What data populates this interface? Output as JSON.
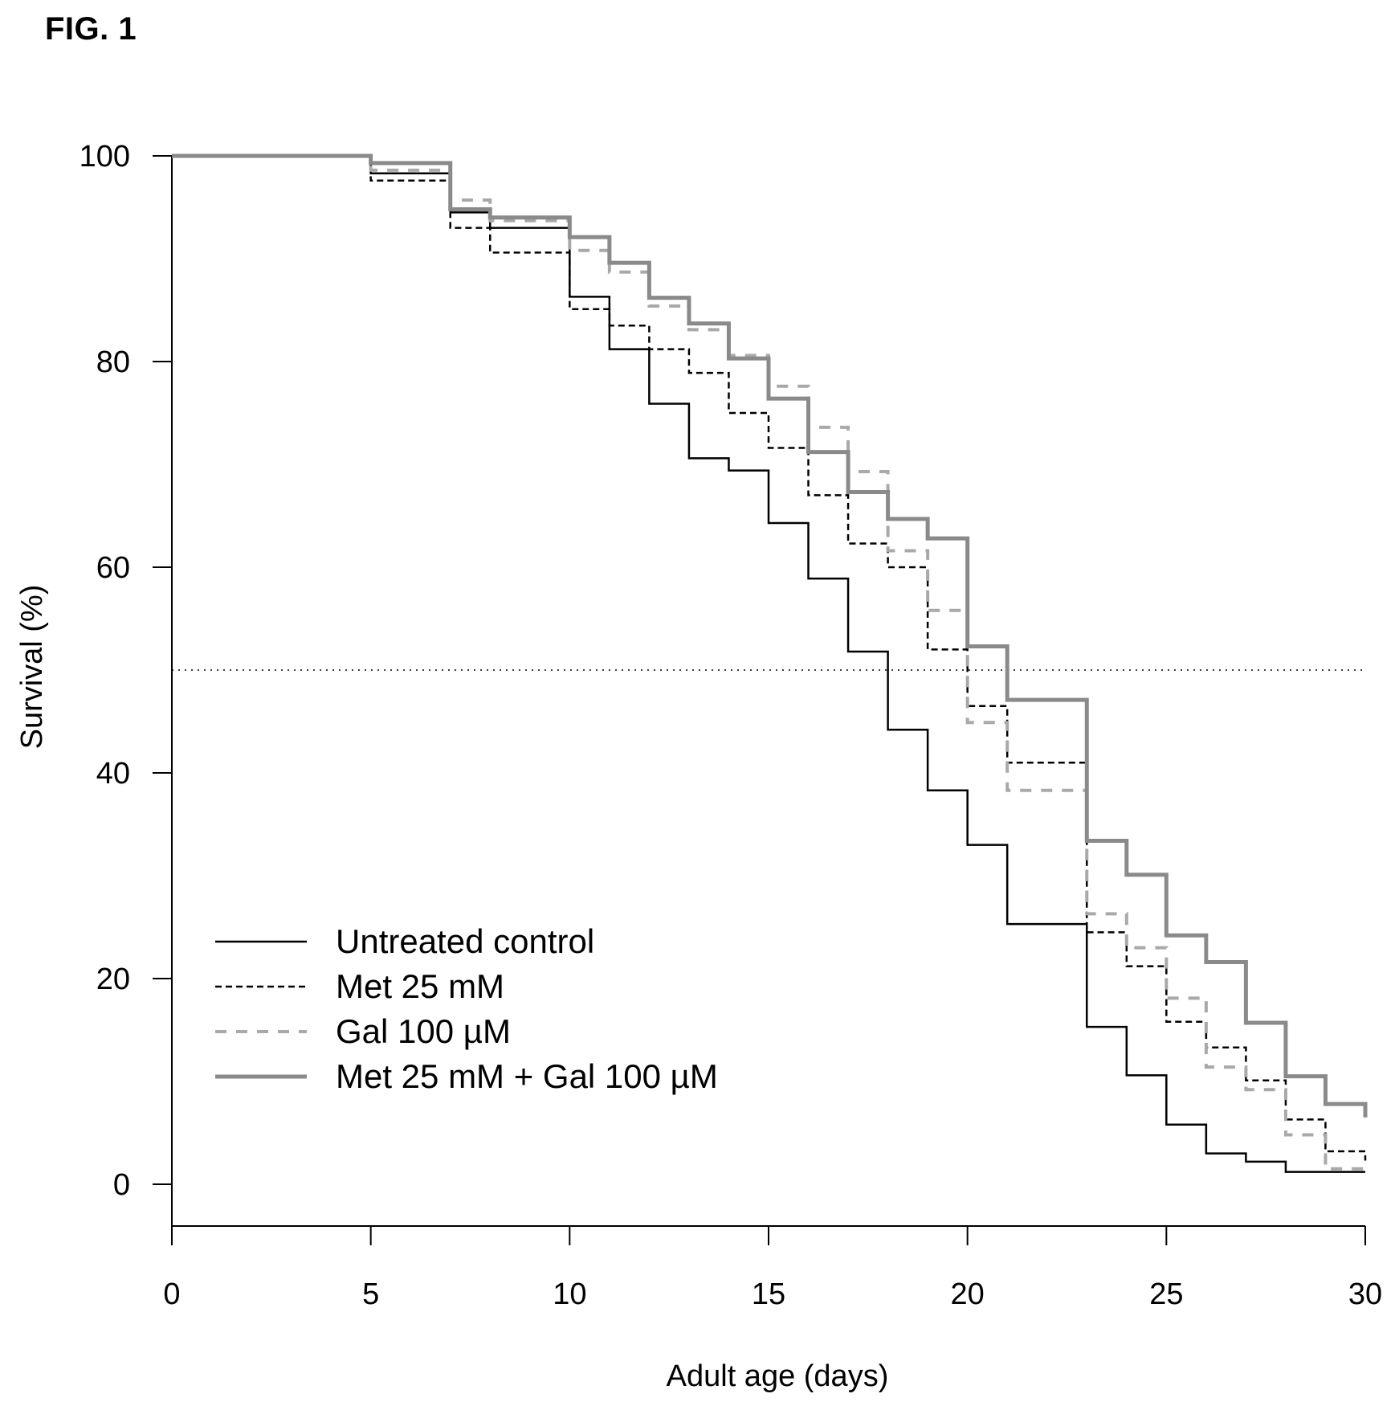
{
  "figure_label": "FIG. 1",
  "chart_data": {
    "type": "line",
    "step": true,
    "title": "",
    "xlabel": "Adult age (days)",
    "ylabel": "Survival (%)",
    "xlim": [
      0,
      30
    ],
    "ylim": [
      -4,
      100
    ],
    "xticks": [
      0,
      5,
      10,
      15,
      20,
      25,
      30
    ],
    "yticks": [
      0,
      20,
      40,
      60,
      80,
      100
    ],
    "grid": false,
    "legend_position": "bottom-left",
    "reference_line": {
      "y": 50,
      "style": "dotted"
    },
    "series": [
      {
        "name": "Untreated control",
        "color": "#000000",
        "dash": "solid",
        "x": [
          0,
          5,
          7,
          8,
          10,
          11,
          12,
          13,
          14,
          15,
          16,
          17,
          18,
          19,
          20,
          21,
          23,
          24,
          25,
          26,
          27,
          28,
          29,
          30
        ],
        "y": [
          100,
          98.3,
          94.5,
          93,
          86.3,
          81.2,
          75.9,
          70.6,
          69.4,
          64.3,
          58.9,
          51.8,
          44.2,
          38.3,
          33.0,
          25.3,
          15.3,
          10.6,
          5.8,
          3.0,
          2.2,
          1.2,
          1.2,
          1.2
        ]
      },
      {
        "name": "Met 25 mM",
        "color": "#000000",
        "dash": "dashed",
        "x": [
          0,
          5,
          7,
          8,
          10,
          11,
          12,
          13,
          14,
          15,
          16,
          17,
          18,
          19,
          20,
          21,
          23,
          24,
          25,
          26,
          27,
          28,
          29,
          30
        ],
        "y": [
          100,
          97.6,
          93,
          90.6,
          85.1,
          83.5,
          81.2,
          78.9,
          75.0,
          71.6,
          67.0,
          62.3,
          60.0,
          52.0,
          46.5,
          41.0,
          24.5,
          21.2,
          15.8,
          13.3,
          10.1,
          6.3,
          3.2,
          2.3
        ]
      },
      {
        "name": "Gal 100 µM",
        "color": "#a9a9a9",
        "dash": "wide-dashed",
        "x": [
          0,
          5,
          7,
          8,
          10,
          11,
          12,
          13,
          14,
          15,
          16,
          17,
          18,
          19,
          20,
          21,
          23,
          24,
          25,
          26,
          27,
          28,
          29,
          30
        ],
        "y": [
          100,
          98.6,
          95.7,
          93.7,
          90.8,
          88.7,
          85.4,
          83.1,
          80.6,
          77.6,
          73.6,
          69.3,
          61.6,
          55.8,
          44.9,
          38.3,
          26.3,
          23.0,
          18.1,
          11.4,
          9.2,
          4.8,
          1.5,
          1.5
        ]
      },
      {
        "name": "Met 25 mM + Gal 100 µM",
        "color": "#8a8a8a",
        "dash": "solid",
        "x": [
          0,
          5,
          7,
          8,
          10,
          11,
          12,
          13,
          14,
          15,
          16,
          17,
          18,
          19,
          20,
          21,
          23,
          24,
          25,
          26,
          27,
          28,
          29,
          30
        ],
        "y": [
          100,
          99.3,
          94.8,
          94.0,
          92.1,
          89.6,
          86.2,
          83.7,
          80.3,
          76.4,
          71.2,
          67.3,
          64.7,
          62.8,
          52.3,
          47.1,
          33.4,
          30.1,
          24.2,
          21.6,
          15.7,
          10.5,
          7.8,
          6.5
        ]
      }
    ]
  }
}
